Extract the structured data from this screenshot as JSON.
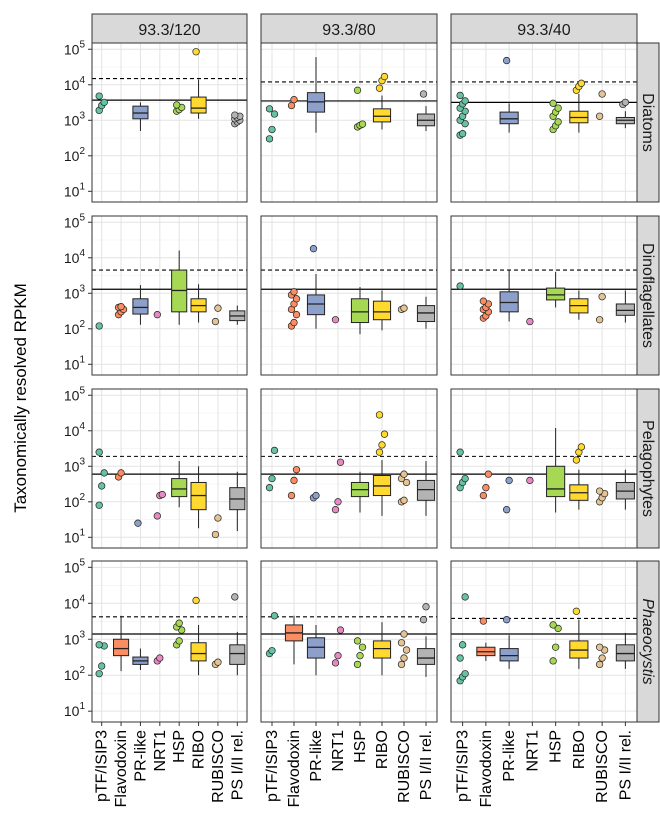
{
  "chart_data": {
    "type": "box",
    "ylabel": "Taxonomically resolved RPKM",
    "y_scale": "log10",
    "ylim": [
      5,
      150000
    ],
    "y_ticks": [
      {
        "value": 10,
        "mantissa": "10",
        "exp": "1"
      },
      {
        "value": 100,
        "mantissa": "10",
        "exp": "2"
      },
      {
        "value": 1000,
        "mantissa": "10",
        "exp": "3"
      },
      {
        "value": 10000,
        "mantissa": "10",
        "exp": "4"
      },
      {
        "value": 100000,
        "mantissa": "10",
        "exp": "5"
      }
    ],
    "columns": [
      "93.3/120",
      "93.3/80",
      "93.3/40"
    ],
    "rows": [
      {
        "label": "Diatoms",
        "italic": false
      },
      {
        "label": "Dinoflagellates",
        "italic": false
      },
      {
        "label": "Pelagophytes",
        "italic": false
      },
      {
        "label": "Phaeocystis",
        "italic": true
      }
    ],
    "categories": [
      "pTF/ISIP3",
      "Flavodoxin",
      "PR-like",
      "NRT1",
      "HSP",
      "RIBO",
      "RUBISCO",
      "PS I/II rel."
    ],
    "colors": {
      "pTF/ISIP3": "#66c2a5",
      "Flavodoxin": "#fc8d62",
      "PR-like": "#8da0cb",
      "NRT1": "#e78ac3",
      "HSP": "#a6d854",
      "RIBO": "#ffd92f",
      "RUBISCO": "#e5c494",
      "PS I/II rel.": "#b3b3b3"
    },
    "grid": true,
    "panels": [
      {
        "row": 0,
        "col": 0,
        "solid_line": 3700,
        "dashed_line": 15000,
        "boxes": [
          {
            "cat": 2,
            "low": 500,
            "q1": 1100,
            "med": 1600,
            "q3": 2500,
            "high": 3200
          },
          {
            "cat": 5,
            "low": 1100,
            "q1": 1600,
            "med": 2200,
            "q3": 4500,
            "high": 14000
          }
        ],
        "points": [
          {
            "cat": 0,
            "values": [
              1900,
              2600,
              3200,
              4800
            ]
          },
          {
            "cat": 4,
            "values": [
              1800,
              2000,
              2300,
              2700
            ]
          },
          {
            "cat": 5,
            "values": [
              85000
            ]
          },
          {
            "cat": 7,
            "values": [
              800,
              900,
              1000,
              1100,
              1200,
              1300,
              1400
            ]
          }
        ]
      },
      {
        "row": 0,
        "col": 1,
        "solid_line": 3500,
        "dashed_line": 12000,
        "boxes": [
          {
            "cat": 2,
            "low": 450,
            "q1": 1700,
            "med": 3300,
            "q3": 6000,
            "high": 60000
          },
          {
            "cat": 5,
            "low": 550,
            "q1": 900,
            "med": 1300,
            "q3": 2100,
            "high": 5000
          },
          {
            "cat": 7,
            "low": 500,
            "q1": 700,
            "med": 1000,
            "q3": 1500,
            "high": 2500
          }
        ],
        "points": [
          {
            "cat": 0,
            "values": [
              300,
              550,
              1500,
              2100
            ]
          },
          {
            "cat": 1,
            "values": [
              2600,
              3800
            ]
          },
          {
            "cat": 4,
            "values": [
              650,
              720,
              780,
              7000
            ]
          },
          {
            "cat": 5,
            "values": [
              8000,
              13000,
              17000
            ]
          },
          {
            "cat": 7,
            "values": [
              5500
            ]
          }
        ]
      },
      {
        "row": 0,
        "col": 2,
        "solid_line": 3200,
        "dashed_line": 12000,
        "boxes": [
          {
            "cat": 2,
            "low": 450,
            "q1": 800,
            "med": 1100,
            "q3": 1700,
            "high": 3000
          },
          {
            "cat": 5,
            "low": 450,
            "q1": 850,
            "med": 1200,
            "q3": 1800,
            "high": 5500
          },
          {
            "cat": 7,
            "low": 600,
            "q1": 800,
            "med": 1000,
            "q3": 1200,
            "high": 1800
          }
        ],
        "points": [
          {
            "cat": 0,
            "values": [
              380,
              420,
              800,
              1000,
              1300,
              1800,
              2200,
              2900,
              3500,
              5000
            ]
          },
          {
            "cat": 2,
            "values": [
              48000
            ]
          },
          {
            "cat": 4,
            "values": [
              550,
              700,
              900,
              1300,
              1700,
              2200,
              3000
            ]
          },
          {
            "cat": 5,
            "values": [
              7000,
              9000,
              11000
            ]
          },
          {
            "cat": 6,
            "values": [
              1300,
              5500
            ]
          },
          {
            "cat": 7,
            "values": [
              2800,
              3200
            ]
          }
        ]
      },
      {
        "row": 1,
        "col": 0,
        "solid_line": 1300,
        "dashed_line": 4500,
        "boxes": [
          {
            "cat": 2,
            "low": 130,
            "q1": 260,
            "med": 400,
            "q3": 700,
            "high": 1700
          },
          {
            "cat": 4,
            "low": 130,
            "q1": 300,
            "med": 1200,
            "q3": 4500,
            "high": 16000
          },
          {
            "cat": 5,
            "low": 150,
            "q1": 300,
            "med": 450,
            "q3": 700,
            "high": 1800
          },
          {
            "cat": 7,
            "low": 130,
            "q1": 170,
            "med": 230,
            "q3": 320,
            "high": 450
          }
        ],
        "points": [
          {
            "cat": 0,
            "values": [
              120
            ]
          },
          {
            "cat": 1,
            "values": [
              250,
              300,
              350,
              400,
              420
            ]
          },
          {
            "cat": 3,
            "values": [
              250
            ]
          },
          {
            "cat": 6,
            "values": [
              160,
              380
            ]
          }
        ]
      },
      {
        "row": 1,
        "col": 1,
        "solid_line": 1300,
        "dashed_line": 4500,
        "boxes": [
          {
            "cat": 2,
            "low": 100,
            "q1": 250,
            "med": 500,
            "q3": 900,
            "high": 3500
          },
          {
            "cat": 4,
            "low": 70,
            "q1": 150,
            "med": 300,
            "q3": 700,
            "high": 1500
          },
          {
            "cat": 5,
            "low": 90,
            "q1": 180,
            "med": 300,
            "q3": 600,
            "high": 1200
          },
          {
            "cat": 7,
            "low": 100,
            "q1": 160,
            "med": 280,
            "q3": 450,
            "high": 800
          }
        ],
        "points": [
          {
            "cat": 1,
            "values": [
              120,
              150,
              250,
              350,
              500,
              700,
              900,
              1100
            ]
          },
          {
            "cat": 2,
            "values": [
              18000
            ]
          },
          {
            "cat": 3,
            "values": [
              180
            ]
          },
          {
            "cat": 6,
            "values": [
              350,
              380
            ]
          }
        ]
      },
      {
        "row": 1,
        "col": 2,
        "solid_line": 1300,
        "dashed_line": 4500,
        "boxes": [
          {
            "cat": 2,
            "low": 160,
            "q1": 300,
            "med": 550,
            "q3": 1100,
            "high": 4500
          },
          {
            "cat": 4,
            "low": 400,
            "q1": 650,
            "med": 900,
            "q3": 1400,
            "high": 4000
          },
          {
            "cat": 5,
            "low": 180,
            "q1": 280,
            "med": 450,
            "q3": 700,
            "high": 1200
          },
          {
            "cat": 7,
            "low": 150,
            "q1": 240,
            "med": 330,
            "q3": 500,
            "high": 1200
          }
        ],
        "points": [
          {
            "cat": 0,
            "values": [
              1600
            ]
          },
          {
            "cat": 1,
            "values": [
              200,
              230,
              300,
              350,
              400,
              500,
              600
            ]
          },
          {
            "cat": 3,
            "values": [
              160
            ]
          },
          {
            "cat": 6,
            "values": [
              180,
              800
            ]
          }
        ]
      },
      {
        "row": 2,
        "col": 0,
        "solid_line": 600,
        "dashed_line": 1900,
        "boxes": [
          {
            "cat": 4,
            "low": 70,
            "q1": 140,
            "med": 230,
            "q3": 450,
            "high": 1400
          },
          {
            "cat": 5,
            "low": 18,
            "q1": 60,
            "med": 150,
            "q3": 350,
            "high": 1000
          },
          {
            "cat": 7,
            "low": 15,
            "q1": 60,
            "med": 120,
            "q3": 250,
            "high": 700
          }
        ],
        "points": [
          {
            "cat": 0,
            "values": [
              80,
              280,
              650,
              2500
            ]
          },
          {
            "cat": 1,
            "values": [
              500,
              650
            ]
          },
          {
            "cat": 2,
            "values": [
              25
            ]
          },
          {
            "cat": 3,
            "values": [
              40,
              150,
              160
            ]
          },
          {
            "cat": 6,
            "values": [
              12,
              35
            ]
          }
        ]
      },
      {
        "row": 2,
        "col": 1,
        "solid_line": 600,
        "dashed_line": 1900,
        "boxes": [
          {
            "cat": 4,
            "low": 50,
            "q1": 140,
            "med": 220,
            "q3": 350,
            "high": 700
          },
          {
            "cat": 5,
            "low": 40,
            "q1": 150,
            "med": 280,
            "q3": 550,
            "high": 1500
          },
          {
            "cat": 7,
            "low": 40,
            "q1": 110,
            "med": 220,
            "q3": 400,
            "high": 1400
          }
        ],
        "points": [
          {
            "cat": 0,
            "values": [
              250,
              450,
              2800
            ]
          },
          {
            "cat": 1,
            "values": [
              150,
              400,
              800
            ]
          },
          {
            "cat": 2,
            "values": [
              130,
              150
            ]
          },
          {
            "cat": 3,
            "values": [
              60,
              100,
              1300
            ]
          },
          {
            "cat": 5,
            "values": [
              2500,
              4000,
              8000,
              28000
            ]
          },
          {
            "cat": 6,
            "values": [
              100,
              110,
              350,
              450,
              600
            ]
          }
        ]
      },
      {
        "row": 2,
        "col": 2,
        "solid_line": 600,
        "dashed_line": 1900,
        "boxes": [
          {
            "cat": 4,
            "low": 50,
            "q1": 140,
            "med": 230,
            "q3": 1000,
            "high": 12000
          },
          {
            "cat": 5,
            "low": 60,
            "q1": 110,
            "med": 180,
            "q3": 300,
            "high": 800
          },
          {
            "cat": 7,
            "low": 60,
            "q1": 120,
            "med": 200,
            "q3": 350,
            "high": 800
          }
        ],
        "points": [
          {
            "cat": 0,
            "values": [
              250,
              350,
              450,
              2500
            ]
          },
          {
            "cat": 1,
            "values": [
              150,
              250,
              600
            ]
          },
          {
            "cat": 2,
            "values": [
              60,
              400
            ]
          },
          {
            "cat": 3,
            "values": [
              400
            ]
          },
          {
            "cat": 5,
            "values": [
              1500,
              2500,
              3500
            ]
          },
          {
            "cat": 6,
            "values": [
              100,
              130,
              170,
              200
            ]
          }
        ]
      },
      {
        "row": 3,
        "col": 0,
        "solid_line": 1400,
        "dashed_line": 4200,
        "boxes": [
          {
            "cat": 1,
            "low": 130,
            "q1": 350,
            "med": 550,
            "q3": 1000,
            "high": 4500
          },
          {
            "cat": 2,
            "low": 140,
            "q1": 200,
            "med": 250,
            "q3": 320,
            "high": 550
          },
          {
            "cat": 5,
            "low": 100,
            "q1": 250,
            "med": 400,
            "q3": 800,
            "high": 2500
          },
          {
            "cat": 7,
            "low": 100,
            "q1": 200,
            "med": 400,
            "q3": 700,
            "high": 1600
          }
        ],
        "points": [
          {
            "cat": 0,
            "values": [
              110,
              180,
              650,
              700
            ]
          },
          {
            "cat": 3,
            "values": [
              250,
              300
            ]
          },
          {
            "cat": 4,
            "values": [
              700,
              900,
              1800,
              2200,
              2800
            ]
          },
          {
            "cat": 5,
            "values": [
              12000
            ]
          },
          {
            "cat": 6,
            "values": [
              200,
              230
            ]
          },
          {
            "cat": 7,
            "values": [
              15000
            ]
          }
        ]
      },
      {
        "row": 3,
        "col": 1,
        "solid_line": 1400,
        "dashed_line": 4200,
        "boxes": [
          {
            "cat": 1,
            "low": 200,
            "q1": 900,
            "med": 1500,
            "q3": 2500,
            "high": 4500
          },
          {
            "cat": 2,
            "low": 100,
            "q1": 300,
            "med": 600,
            "q3": 1100,
            "high": 2500
          },
          {
            "cat": 5,
            "low": 100,
            "q1": 300,
            "med": 550,
            "q3": 900,
            "high": 3000
          },
          {
            "cat": 7,
            "low": 90,
            "q1": 200,
            "med": 300,
            "q3": 550,
            "high": 1200
          }
        ],
        "points": [
          {
            "cat": 0,
            "values": [
              400,
              480,
              4500
            ]
          },
          {
            "cat": 3,
            "values": [
              220,
              350,
              1800
            ]
          },
          {
            "cat": 4,
            "values": [
              200,
              350,
              600,
              900
            ]
          },
          {
            "cat": 6,
            "values": [
              200,
              300,
              500,
              800,
              1400
            ]
          },
          {
            "cat": 7,
            "values": [
              3500,
              8000
            ]
          }
        ]
      },
      {
        "row": 3,
        "col": 2,
        "solid_line": 1400,
        "dashed_line": 3800,
        "boxes": [
          {
            "cat": 1,
            "low": 250,
            "q1": 350,
            "med": 450,
            "q3": 600,
            "high": 800
          },
          {
            "cat": 2,
            "low": 150,
            "q1": 250,
            "med": 350,
            "q3": 550,
            "high": 1300
          },
          {
            "cat": 5,
            "low": 150,
            "q1": 300,
            "med": 500,
            "q3": 900,
            "high": 3500
          },
          {
            "cat": 7,
            "low": 150,
            "q1": 250,
            "med": 400,
            "q3": 700,
            "high": 1500
          }
        ],
        "points": [
          {
            "cat": 0,
            "values": [
              70,
              90,
              110,
              300,
              700,
              15000
            ]
          },
          {
            "cat": 1,
            "values": [
              3200
            ]
          },
          {
            "cat": 2,
            "values": [
              3500
            ]
          },
          {
            "cat": 4,
            "values": [
              250,
              600,
              2000,
              2500
            ]
          },
          {
            "cat": 5,
            "values": [
              6000
            ]
          },
          {
            "cat": 6,
            "values": [
              200,
              300,
              500,
              600
            ]
          }
        ]
      }
    ]
  }
}
